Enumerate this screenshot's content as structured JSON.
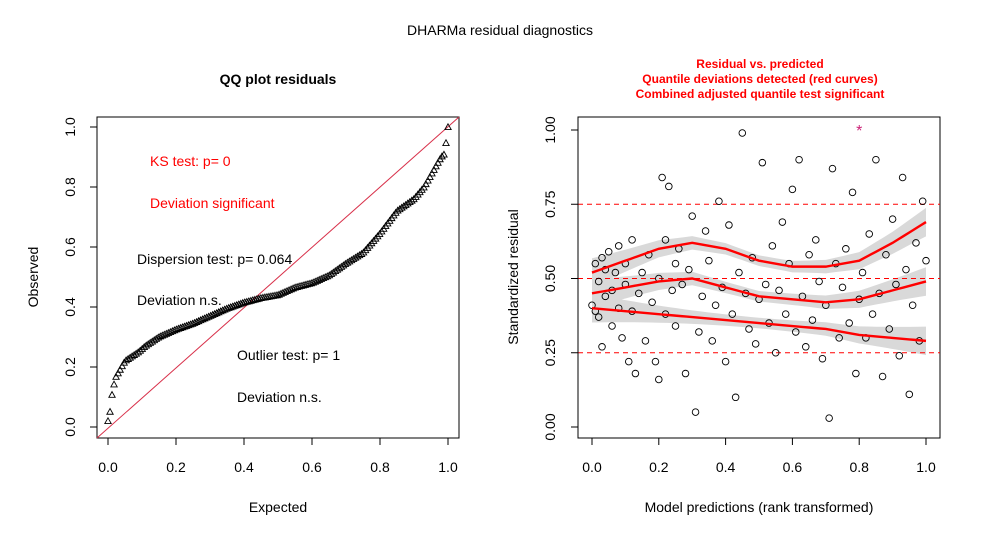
{
  "figure_title": "DHARMa residual diagnostics",
  "colors": {
    "red": "#ff0000",
    "qq_line": "#d8304a",
    "outlier": "#cc2277",
    "band": "#d9d9d9",
    "black": "#000000"
  },
  "chart_data": [
    {
      "type": "scatter",
      "title": "QQ plot residuals",
      "xlabel": "Expected",
      "ylabel": "Observed",
      "xlim": [
        0,
        1
      ],
      "ylim": [
        0,
        1
      ],
      "xticks": [
        "0.0",
        "0.2",
        "0.4",
        "0.6",
        "0.8",
        "1.0"
      ],
      "yticks": [
        "0.0",
        "0.2",
        "0.4",
        "0.6",
        "0.8",
        "1.0"
      ],
      "reference_line": {
        "from": [
          0,
          0
        ],
        "to": [
          1,
          1
        ]
      },
      "quantile_points": [
        [
          0.0,
          0.02
        ],
        [
          0.005,
          0.04
        ],
        [
          0.01,
          0.1
        ],
        [
          0.015,
          0.12
        ],
        [
          0.02,
          0.16
        ],
        [
          0.03,
          0.18
        ],
        [
          0.04,
          0.2
        ],
        [
          0.05,
          0.22
        ],
        [
          0.07,
          0.235
        ],
        [
          0.09,
          0.25
        ],
        [
          0.11,
          0.27
        ],
        [
          0.13,
          0.285
        ],
        [
          0.15,
          0.3
        ],
        [
          0.18,
          0.315
        ],
        [
          0.2,
          0.325
        ],
        [
          0.25,
          0.345
        ],
        [
          0.3,
          0.37
        ],
        [
          0.35,
          0.395
        ],
        [
          0.4,
          0.415
        ],
        [
          0.45,
          0.43
        ],
        [
          0.5,
          0.44
        ],
        [
          0.55,
          0.465
        ],
        [
          0.6,
          0.48
        ],
        [
          0.65,
          0.505
        ],
        [
          0.7,
          0.545
        ],
        [
          0.75,
          0.58
        ],
        [
          0.8,
          0.645
        ],
        [
          0.85,
          0.72
        ],
        [
          0.9,
          0.76
        ],
        [
          0.93,
          0.8
        ],
        [
          0.96,
          0.86
        ],
        [
          0.98,
          0.9
        ],
        [
          0.99,
          0.91
        ],
        [
          1.0,
          1.0
        ]
      ],
      "annotations": {
        "ks_test": "KS test: p= 0",
        "ks_deviation": "Deviation  significant",
        "dispersion_test": "Dispersion test: p= 0.064",
        "dispersion_deviation": "Deviation  n.s.",
        "outlier_test": "Outlier test: p= 1",
        "outlier_deviation": "Deviation  n.s."
      }
    },
    {
      "type": "scatter",
      "title_lines": [
        "Residual vs. predicted",
        "Quantile deviations detected (red curves)",
        "Combined adjusted quantile test significant"
      ],
      "xlabel": "Model predictions (rank transformed)",
      "ylabel": "Standardized residual",
      "xlim": [
        0,
        1
      ],
      "ylim": [
        0,
        1
      ],
      "xticks": [
        "0.0",
        "0.2",
        "0.4",
        "0.6",
        "0.8",
        "1.0"
      ],
      "yticks": [
        "0.00",
        "0.25",
        "0.50",
        "0.75",
        "1.00"
      ],
      "reference_lines_y": [
        0.25,
        0.5,
        0.75
      ],
      "quantile_curves": [
        {
          "name": "0.25",
          "values": [
            [
              0.0,
              0.4
            ],
            [
              0.1,
              0.39
            ],
            [
              0.2,
              0.38
            ],
            [
              0.3,
              0.37
            ],
            [
              0.4,
              0.36
            ],
            [
              0.5,
              0.35
            ],
            [
              0.6,
              0.34
            ],
            [
              0.7,
              0.33
            ],
            [
              0.8,
              0.31
            ],
            [
              0.9,
              0.3
            ],
            [
              1.0,
              0.29
            ]
          ]
        },
        {
          "name": "0.5",
          "values": [
            [
              0.0,
              0.45
            ],
            [
              0.1,
              0.47
            ],
            [
              0.2,
              0.49
            ],
            [
              0.3,
              0.5
            ],
            [
              0.4,
              0.47
            ],
            [
              0.5,
              0.44
            ],
            [
              0.6,
              0.43
            ],
            [
              0.7,
              0.42
            ],
            [
              0.8,
              0.43
            ],
            [
              0.9,
              0.46
            ],
            [
              1.0,
              0.49
            ]
          ]
        },
        {
          "name": "0.75",
          "values": [
            [
              0.0,
              0.52
            ],
            [
              0.1,
              0.56
            ],
            [
              0.2,
              0.6
            ],
            [
              0.3,
              0.62
            ],
            [
              0.4,
              0.6
            ],
            [
              0.5,
              0.56
            ],
            [
              0.6,
              0.54
            ],
            [
              0.7,
              0.54
            ],
            [
              0.8,
              0.56
            ],
            [
              0.9,
              0.62
            ],
            [
              1.0,
              0.69
            ]
          ]
        }
      ],
      "points": [
        [
          0.0,
          0.41
        ],
        [
          0.01,
          0.39
        ],
        [
          0.01,
          0.55
        ],
        [
          0.02,
          0.37
        ],
        [
          0.02,
          0.49
        ],
        [
          0.03,
          0.27
        ],
        [
          0.03,
          0.57
        ],
        [
          0.04,
          0.44
        ],
        [
          0.04,
          0.53
        ],
        [
          0.05,
          0.59
        ],
        [
          0.06,
          0.34
        ],
        [
          0.06,
          0.46
        ],
        [
          0.07,
          0.52
        ],
        [
          0.08,
          0.4
        ],
        [
          0.08,
          0.61
        ],
        [
          0.09,
          0.3
        ],
        [
          0.1,
          0.48
        ],
        [
          0.1,
          0.55
        ],
        [
          0.11,
          0.22
        ],
        [
          0.12,
          0.39
        ],
        [
          0.12,
          0.63
        ],
        [
          0.13,
          0.18
        ],
        [
          0.14,
          0.45
        ],
        [
          0.15,
          0.52
        ],
        [
          0.16,
          0.29
        ],
        [
          0.17,
          0.58
        ],
        [
          0.18,
          0.42
        ],
        [
          0.19,
          0.22
        ],
        [
          0.2,
          0.16
        ],
        [
          0.2,
          0.5
        ],
        [
          0.21,
          0.84
        ],
        [
          0.22,
          0.38
        ],
        [
          0.22,
          0.63
        ],
        [
          0.23,
          0.81
        ],
        [
          0.24,
          0.46
        ],
        [
          0.25,
          0.55
        ],
        [
          0.25,
          0.34
        ],
        [
          0.26,
          0.6
        ],
        [
          0.27,
          0.48
        ],
        [
          0.28,
          0.18
        ],
        [
          0.29,
          0.53
        ],
        [
          0.3,
          0.71
        ],
        [
          0.31,
          0.05
        ],
        [
          0.32,
          0.32
        ],
        [
          0.33,
          0.44
        ],
        [
          0.34,
          0.66
        ],
        [
          0.35,
          0.56
        ],
        [
          0.36,
          0.29
        ],
        [
          0.37,
          0.41
        ],
        [
          0.38,
          0.76
        ],
        [
          0.39,
          0.47
        ],
        [
          0.4,
          0.22
        ],
        [
          0.41,
          0.68
        ],
        [
          0.42,
          0.38
        ],
        [
          0.43,
          0.1
        ],
        [
          0.44,
          0.52
        ],
        [
          0.45,
          0.99
        ],
        [
          0.46,
          0.45
        ],
        [
          0.47,
          0.33
        ],
        [
          0.48,
          0.57
        ],
        [
          0.49,
          0.28
        ],
        [
          0.5,
          0.43
        ],
        [
          0.51,
          0.89
        ],
        [
          0.52,
          0.48
        ],
        [
          0.53,
          0.35
        ],
        [
          0.54,
          0.61
        ],
        [
          0.55,
          0.25
        ],
        [
          0.56,
          0.46
        ],
        [
          0.57,
          0.69
        ],
        [
          0.58,
          0.38
        ],
        [
          0.59,
          0.55
        ],
        [
          0.6,
          0.8
        ],
        [
          0.61,
          0.32
        ],
        [
          0.62,
          0.9
        ],
        [
          0.63,
          0.44
        ],
        [
          0.64,
          0.27
        ],
        [
          0.65,
          0.58
        ],
        [
          0.66,
          0.36
        ],
        [
          0.67,
          0.63
        ],
        [
          0.68,
          0.49
        ],
        [
          0.69,
          0.23
        ],
        [
          0.7,
          0.41
        ],
        [
          0.71,
          0.03
        ],
        [
          0.72,
          0.87
        ],
        [
          0.73,
          0.55
        ],
        [
          0.74,
          0.3
        ],
        [
          0.75,
          0.47
        ],
        [
          0.76,
          0.6
        ],
        [
          0.77,
          0.35
        ],
        [
          0.78,
          0.79
        ],
        [
          0.79,
          0.18
        ],
        [
          0.8,
          0.43
        ],
        [
          0.81,
          0.52
        ],
        [
          0.82,
          0.3
        ],
        [
          0.83,
          0.65
        ],
        [
          0.84,
          0.38
        ],
        [
          0.85,
          0.9
        ],
        [
          0.86,
          0.45
        ],
        [
          0.87,
          0.17
        ],
        [
          0.88,
          0.58
        ],
        [
          0.89,
          0.33
        ],
        [
          0.9,
          0.7
        ],
        [
          0.91,
          0.48
        ],
        [
          0.92,
          0.24
        ],
        [
          0.93,
          0.84
        ],
        [
          0.94,
          0.53
        ],
        [
          0.95,
          0.11
        ],
        [
          0.96,
          0.41
        ],
        [
          0.97,
          0.62
        ],
        [
          0.98,
          0.29
        ],
        [
          0.99,
          0.76
        ],
        [
          1.0,
          0.56
        ]
      ],
      "outlier_points": [
        [
          0.8,
          1.0
        ]
      ]
    }
  ]
}
